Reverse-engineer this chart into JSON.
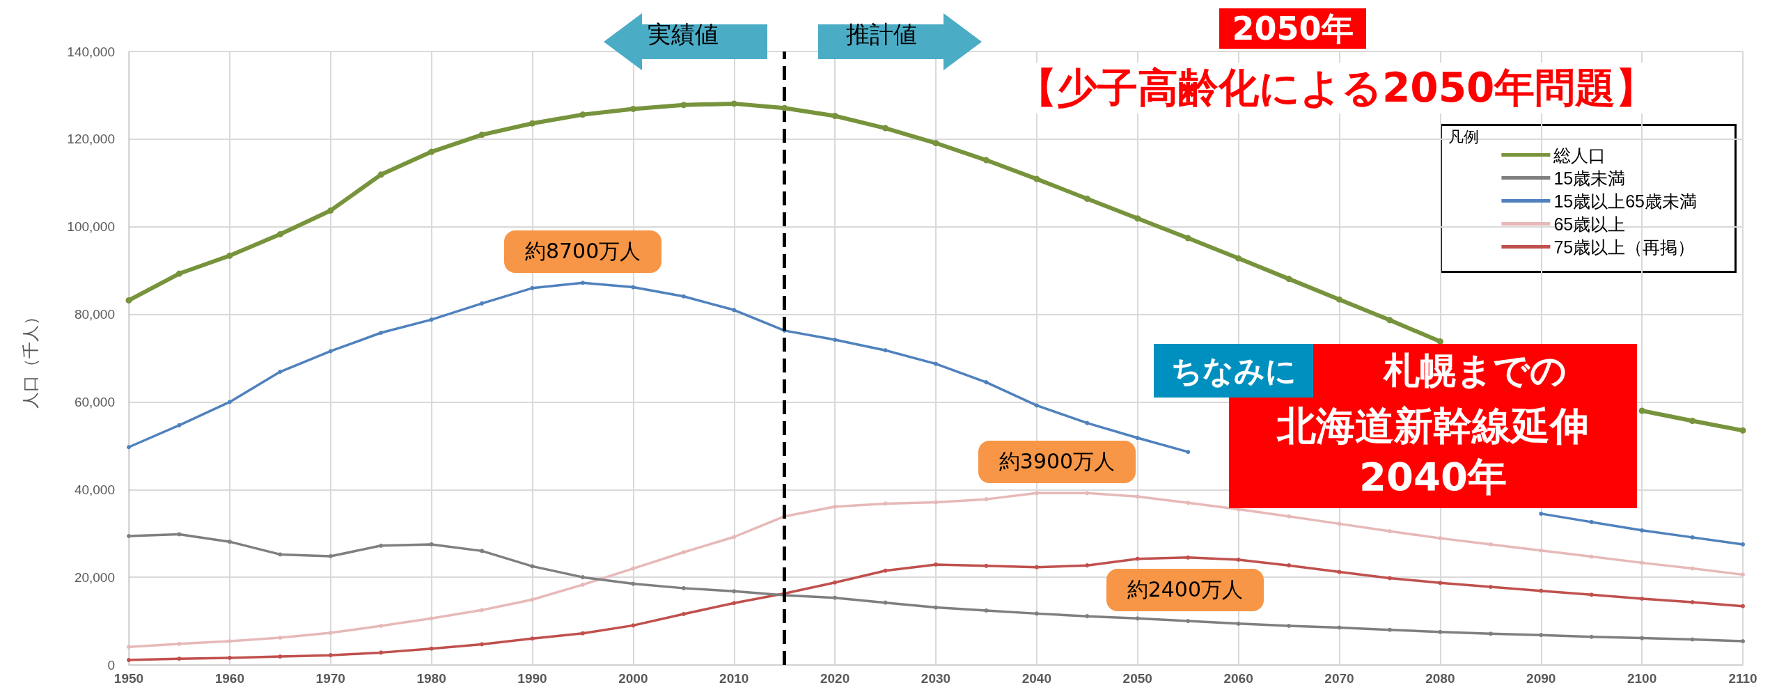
{
  "chart_data": {
    "type": "line",
    "ylabel": "人口（千人）",
    "legend_title": "凡例",
    "legend": "top right",
    "grid": true,
    "marker": "circle",
    "xlim": [
      1950,
      2110
    ],
    "xticks": [
      1950,
      1960,
      1970,
      1980,
      1990,
      2000,
      2010,
      2020,
      2030,
      2040,
      2050,
      2060,
      2070,
      2080,
      2090,
      2100,
      2110
    ],
    "ylim": [
      0,
      140000
    ],
    "yticks": [
      {
        "value": 0,
        "label": "0"
      },
      {
        "value": 20000,
        "label": "20,000"
      },
      {
        "value": 40000,
        "label": "40,000"
      },
      {
        "value": 60000,
        "label": "60,000"
      },
      {
        "value": 80000,
        "label": "80,000"
      },
      {
        "value": 100000,
        "label": "100,000"
      },
      {
        "value": 120000,
        "label": "120,000"
      },
      {
        "value": 140000,
        "label": "140,000"
      }
    ],
    "x": [
      1950,
      1955,
      1960,
      1965,
      1970,
      1975,
      1980,
      1985,
      1990,
      1995,
      2000,
      2005,
      2010,
      2015,
      2020,
      2025,
      2030,
      2035,
      2040,
      2045,
      2050,
      2055,
      2060,
      2065,
      2070,
      2075,
      2080,
      2085,
      2090,
      2095,
      2100,
      2105,
      2110
    ],
    "series": [
      {
        "name": "総人口",
        "color": "#77933c",
        "values": [
          83200,
          89300,
          93400,
          98300,
          103700,
          111900,
          117100,
          121000,
          123600,
          125600,
          126900,
          127800,
          128100,
          127100,
          125300,
          122500,
          119100,
          115200,
          110900,
          106400,
          101900,
          97400,
          92800,
          88100,
          83400,
          78700,
          73800,
          null,
          null,
          null,
          58000,
          55700,
          53500
        ]
      },
      {
        "name": "15歳未満",
        "color": "#7f7f7f",
        "values": [
          29400,
          29800,
          28100,
          25200,
          24800,
          27200,
          27500,
          26000,
          22500,
          20000,
          18500,
          17500,
          16800,
          15900,
          15300,
          14200,
          13100,
          12400,
          11700,
          11100,
          10600,
          10000,
          9400,
          8900,
          8500,
          8000,
          7500,
          7100,
          6800,
          6400,
          6100,
          5800,
          5400
        ]
      },
      {
        "name": "15歳以上65歳未満",
        "color": "#4f81bd",
        "values": [
          49700,
          54700,
          60000,
          66900,
          71600,
          75800,
          78800,
          82500,
          86000,
          87200,
          86200,
          84100,
          81000,
          76300,
          74200,
          71800,
          68700,
          64500,
          59200,
          55200,
          51800,
          48600,
          null,
          null,
          null,
          null,
          null,
          null,
          34500,
          32600,
          30700,
          29100,
          27500
        ]
      },
      {
        "name": "65歳以上",
        "color": "#e6b9b8",
        "values": [
          4100,
          4800,
          5400,
          6200,
          7300,
          8900,
          10600,
          12500,
          14900,
          18300,
          22000,
          25700,
          29200,
          33900,
          36100,
          36800,
          37100,
          37800,
          39200,
          39200,
          38400,
          37000,
          35500,
          33900,
          32200,
          30500,
          28900,
          27500,
          26100,
          24700,
          23300,
          22000,
          20600
        ]
      },
      {
        "name": "75歳以上（再掲）",
        "color": "#c0504d",
        "values": [
          1100,
          1400,
          1600,
          1900,
          2200,
          2800,
          3700,
          4700,
          6000,
          7200,
          9000,
          11600,
          14100,
          16300,
          18800,
          21500,
          22900,
          22600,
          22300,
          22700,
          24200,
          24500,
          24000,
          22700,
          21200,
          19800,
          18700,
          17800,
          16900,
          16000,
          15100,
          14300,
          13400
        ]
      }
    ],
    "ref_lines": [
      {
        "axis": "x",
        "value": 2015,
        "color": "#000000",
        "line_style": "dashed"
      }
    ],
    "annotations": [
      "実績値",
      "推計値",
      "2050年",
      "【少子高齢化による2050年問題】",
      "ちなみに",
      "札幌までの",
      "北海道新幹線延伸",
      "2040年",
      {
        "text": "約8700万人",
        "x": 1995,
        "y": 87200
      },
      {
        "text": "約3900万人",
        "x": 2042,
        "y": 39300
      },
      {
        "text": "約2400万人",
        "x": 2054,
        "y": 24500
      }
    ]
  }
}
